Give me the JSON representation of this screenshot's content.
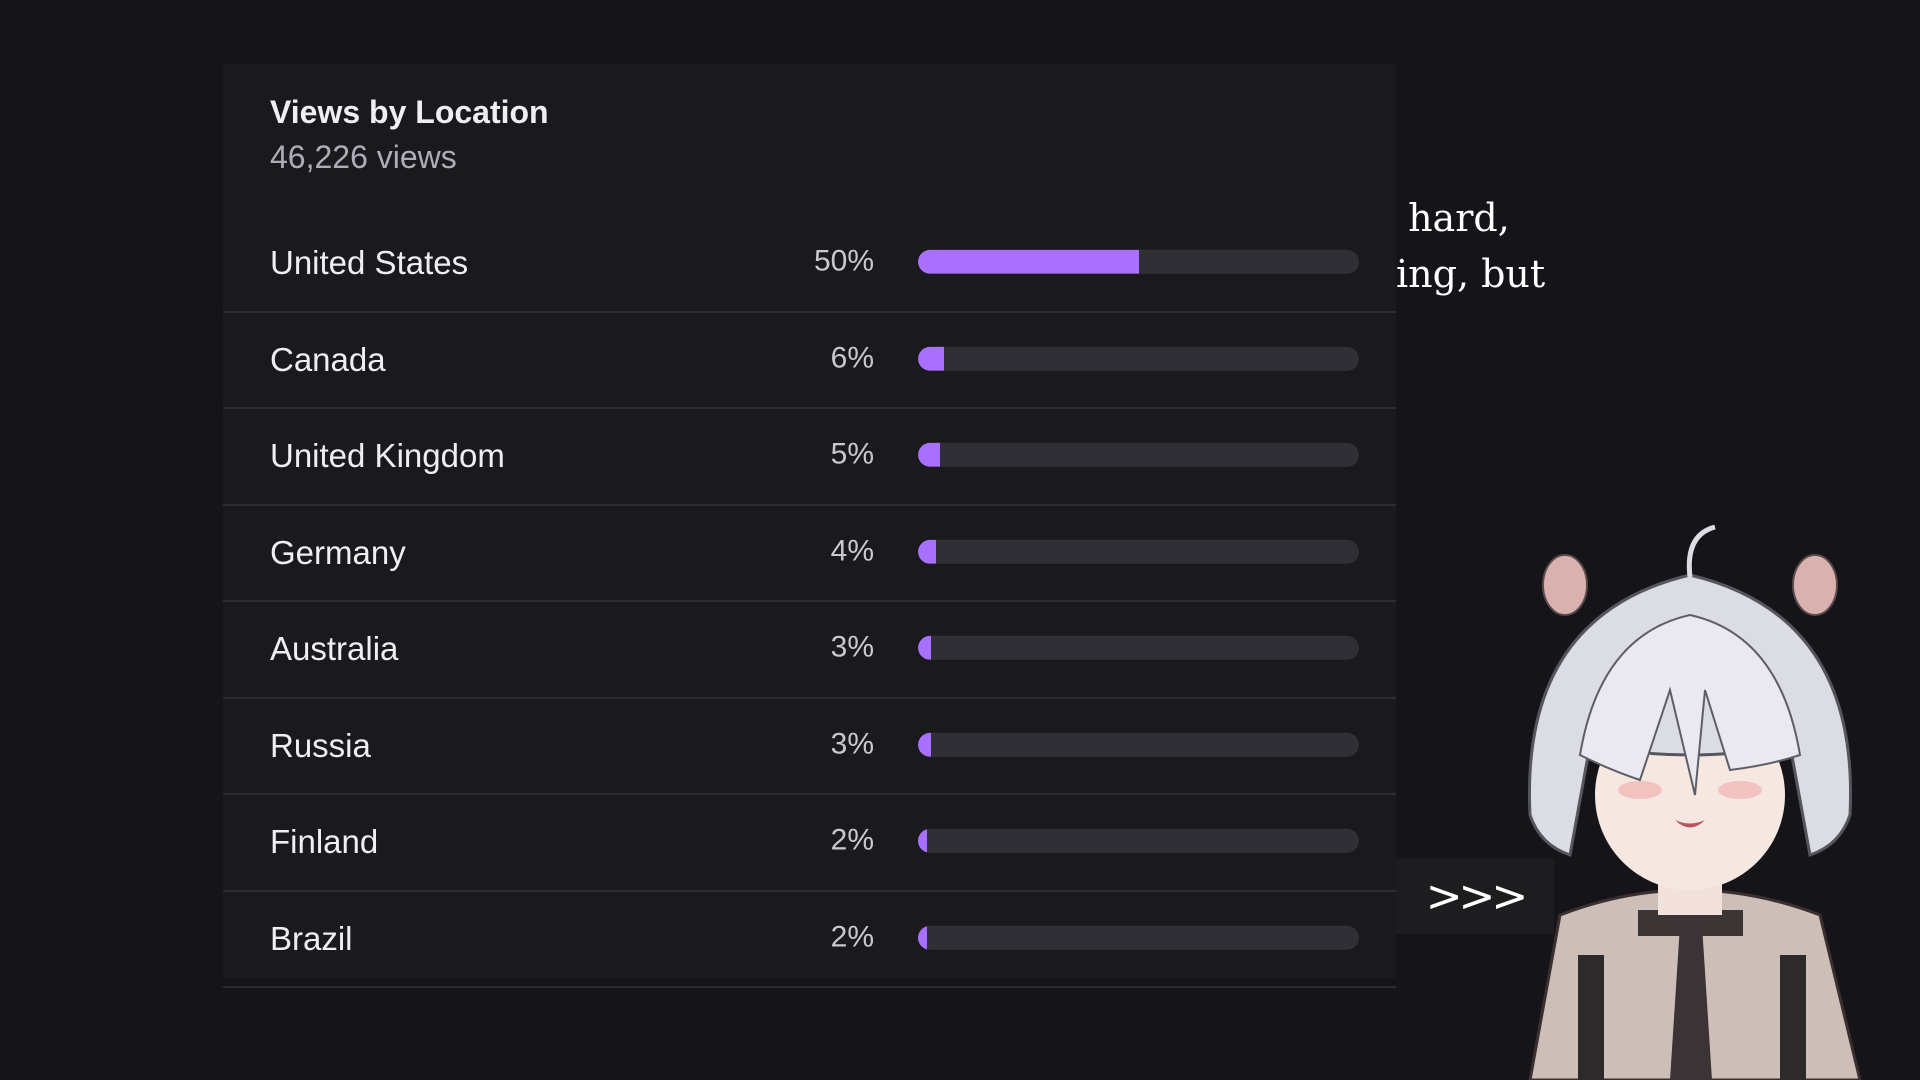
{
  "panel": {
    "title": "Views by Location",
    "subtitle": "46,226 views",
    "rows": [
      {
        "country": "United States",
        "percent_label": "50%",
        "percent": 50
      },
      {
        "country": "Canada",
        "percent_label": "6%",
        "percent": 6
      },
      {
        "country": "United Kingdom",
        "percent_label": "5%",
        "percent": 5
      },
      {
        "country": "Germany",
        "percent_label": "4%",
        "percent": 4
      },
      {
        "country": "Australia",
        "percent_label": "3%",
        "percent": 3
      },
      {
        "country": "Russia",
        "percent_label": "3%",
        "percent": 3
      },
      {
        "country": "Finland",
        "percent_label": "2%",
        "percent": 2
      },
      {
        "country": "Brazil",
        "percent_label": "2%",
        "percent": 2
      }
    ],
    "bar_color": "#a970ff"
  },
  "dialogue": {
    "text": " hard,\ning, but",
    "next_label": ">>>"
  },
  "avatar": {
    "icon": "anime-character-avatar-icon"
  }
}
